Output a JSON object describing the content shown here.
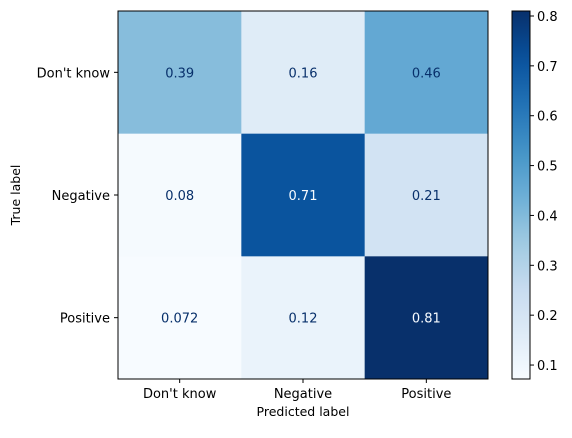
{
  "chart_data": {
    "type": "heatmap",
    "title": "",
    "xlabel": "Predicted label",
    "ylabel": "True label",
    "x_categories": [
      "Don't know",
      "Negative",
      "Positive"
    ],
    "y_categories": [
      "Don't know",
      "Negative",
      "Positive"
    ],
    "values": [
      [
        0.39,
        0.16,
        0.46
      ],
      [
        0.08,
        0.71,
        0.21
      ],
      [
        0.072,
        0.12,
        0.81
      ]
    ],
    "cell_labels": [
      [
        "0.39",
        "0.16",
        "0.46"
      ],
      [
        "0.08",
        "0.71",
        "0.21"
      ],
      [
        "0.072",
        "0.12",
        "0.81"
      ]
    ],
    "colormap": "Blues",
    "colorbar": {
      "range": [
        0.072,
        0.81
      ],
      "ticks": [
        0.1,
        0.2,
        0.3,
        0.4,
        0.5,
        0.6,
        0.7,
        0.8
      ],
      "tick_labels": [
        "0.1",
        "0.2",
        "0.3",
        "0.4",
        "0.5",
        "0.6",
        "0.7",
        "0.8"
      ]
    },
    "grid": false,
    "legend": "colorbar-right"
  }
}
